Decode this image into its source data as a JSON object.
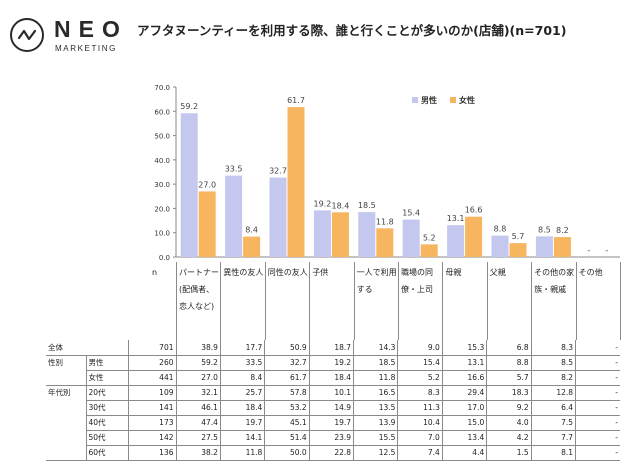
{
  "brand": {
    "name": "NEO",
    "sub": "MARKETING",
    "logo_icon": "zigzag-circle-icon"
  },
  "title": "アフタヌーンティーを利用する際、誰と行くことが多いのか(店舗)(n=701)",
  "colors": {
    "male": "#c5c8ee",
    "female": "#f6b55e",
    "axis": "#8a8a8a",
    "grid": "#d9d9d9"
  },
  "n_label": "n",
  "chart_data": {
    "type": "bar",
    "categories": [
      "パートナー(配偶者、恋人など)",
      "異性の友人",
      "同性の友人",
      "子供",
      "一人で利用する",
      "職場の同僚・上司",
      "母親",
      "父親",
      "その他の家族・親戚",
      "その他"
    ],
    "series": [
      {
        "name": "男性",
        "values": [
          59.2,
          33.5,
          32.7,
          19.2,
          18.5,
          15.4,
          13.1,
          8.8,
          8.5,
          0
        ]
      },
      {
        "name": "女性",
        "values": [
          27.0,
          8.4,
          61.7,
          18.4,
          11.8,
          5.2,
          16.6,
          5.7,
          8.2,
          0
        ]
      }
    ],
    "data_labels": {
      "男性": [
        "59.2",
        "33.5",
        "32.7",
        "19.2",
        "18.5",
        "15.4",
        "13.1",
        "8.8",
        "8.5",
        "-"
      ],
      "女性": [
        "27.0",
        "8.4",
        "61.7",
        "18.4",
        "11.8",
        "5.2",
        "16.6",
        "5.7",
        "8.2",
        "-"
      ]
    },
    "yticks": [
      "70.0",
      "60.0",
      "50.0",
      "40.0",
      "30.0",
      "20.0",
      "10.0",
      "0.0"
    ],
    "ylim": [
      0,
      70
    ],
    "legend": "top-right",
    "grid": false
  },
  "table": {
    "rows": [
      {
        "group": "全体",
        "sub": "",
        "n": "701",
        "v": [
          "38.9",
          "17.7",
          "50.9",
          "18.7",
          "14.3",
          "9.0",
          "15.3",
          "6.8",
          "8.3",
          "-"
        ]
      },
      {
        "group": "性別",
        "sub": "男性",
        "n": "260",
        "v": [
          "59.2",
          "33.5",
          "32.7",
          "19.2",
          "18.5",
          "15.4",
          "13.1",
          "8.8",
          "8.5",
          "-"
        ]
      },
      {
        "group": "",
        "sub": "女性",
        "n": "441",
        "v": [
          "27.0",
          "8.4",
          "61.7",
          "18.4",
          "11.8",
          "5.2",
          "16.6",
          "5.7",
          "8.2",
          "-"
        ]
      },
      {
        "group": "年代別",
        "sub": "20代",
        "n": "109",
        "v": [
          "32.1",
          "25.7",
          "57.8",
          "10.1",
          "16.5",
          "8.3",
          "29.4",
          "18.3",
          "12.8",
          "-"
        ]
      },
      {
        "group": "",
        "sub": "30代",
        "n": "141",
        "v": [
          "46.1",
          "18.4",
          "53.2",
          "14.9",
          "13.5",
          "11.3",
          "17.0",
          "9.2",
          "6.4",
          "-"
        ]
      },
      {
        "group": "",
        "sub": "40代",
        "n": "173",
        "v": [
          "47.4",
          "19.7",
          "45.1",
          "19.7",
          "13.9",
          "10.4",
          "15.0",
          "4.0",
          "7.5",
          "-"
        ]
      },
      {
        "group": "",
        "sub": "50代",
        "n": "142",
        "v": [
          "27.5",
          "14.1",
          "51.4",
          "23.9",
          "15.5",
          "7.0",
          "13.4",
          "4.2",
          "7.7",
          "-"
        ]
      },
      {
        "group": "",
        "sub": "60代",
        "n": "136",
        "v": [
          "38.2",
          "11.8",
          "50.0",
          "22.8",
          "12.5",
          "7.4",
          "4.4",
          "1.5",
          "8.1",
          "-"
        ]
      }
    ]
  }
}
